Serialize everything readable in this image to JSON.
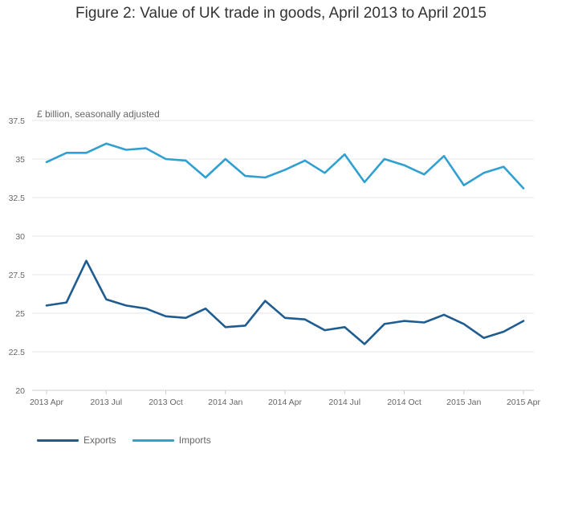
{
  "chart_data": {
    "type": "line",
    "title": "Figure 2: Value of UK trade in goods, April 2013 to April 2015",
    "units_label": "£ billion, seasonally adjusted",
    "x": [
      "2013 Apr",
      "2013 May",
      "2013 Jun",
      "2013 Jul",
      "2013 Aug",
      "2013 Sep",
      "2013 Oct",
      "2013 Nov",
      "2013 Dec",
      "2014 Jan",
      "2014 Feb",
      "2014 Mar",
      "2014 Apr",
      "2014 May",
      "2014 Jun",
      "2014 Jul",
      "2014 Aug",
      "2014 Sep",
      "2014 Oct",
      "2014 Nov",
      "2014 Dec",
      "2015 Jan",
      "2015 Feb",
      "2015 Mar",
      "2015 Apr"
    ],
    "x_tick_labels": [
      "2013 Apr",
      "2013 Jul",
      "2013 Oct",
      "2014 Jan",
      "2014 Apr",
      "2014 Jul",
      "2014 Oct",
      "2015 Jan",
      "2015 Apr"
    ],
    "ylim": [
      20,
      37.5
    ],
    "y_ticks": [
      "20",
      "22.5",
      "25",
      "27.5",
      "30",
      "32.5",
      "35",
      "37.5"
    ],
    "grid": true,
    "legend_position": "bottom-left",
    "series": [
      {
        "name": "Exports",
        "color": "#1f5c8f",
        "values": [
          25.5,
          25.7,
          28.4,
          25.9,
          25.5,
          25.3,
          24.8,
          24.7,
          25.3,
          24.1,
          24.2,
          25.8,
          24.7,
          24.6,
          23.9,
          24.1,
          23.0,
          24.3,
          24.5,
          24.4,
          24.9,
          24.3,
          23.4,
          23.8,
          24.5
        ]
      },
      {
        "name": "Imports",
        "color": "#2fa0d0",
        "values": [
          34.8,
          35.4,
          35.4,
          36.0,
          35.6,
          35.7,
          35.0,
          34.9,
          33.8,
          35.0,
          33.9,
          33.8,
          34.3,
          34.9,
          34.1,
          35.3,
          33.5,
          35.0,
          34.6,
          34.0,
          35.2,
          33.3,
          34.1,
          34.5,
          33.1
        ]
      }
    ]
  }
}
